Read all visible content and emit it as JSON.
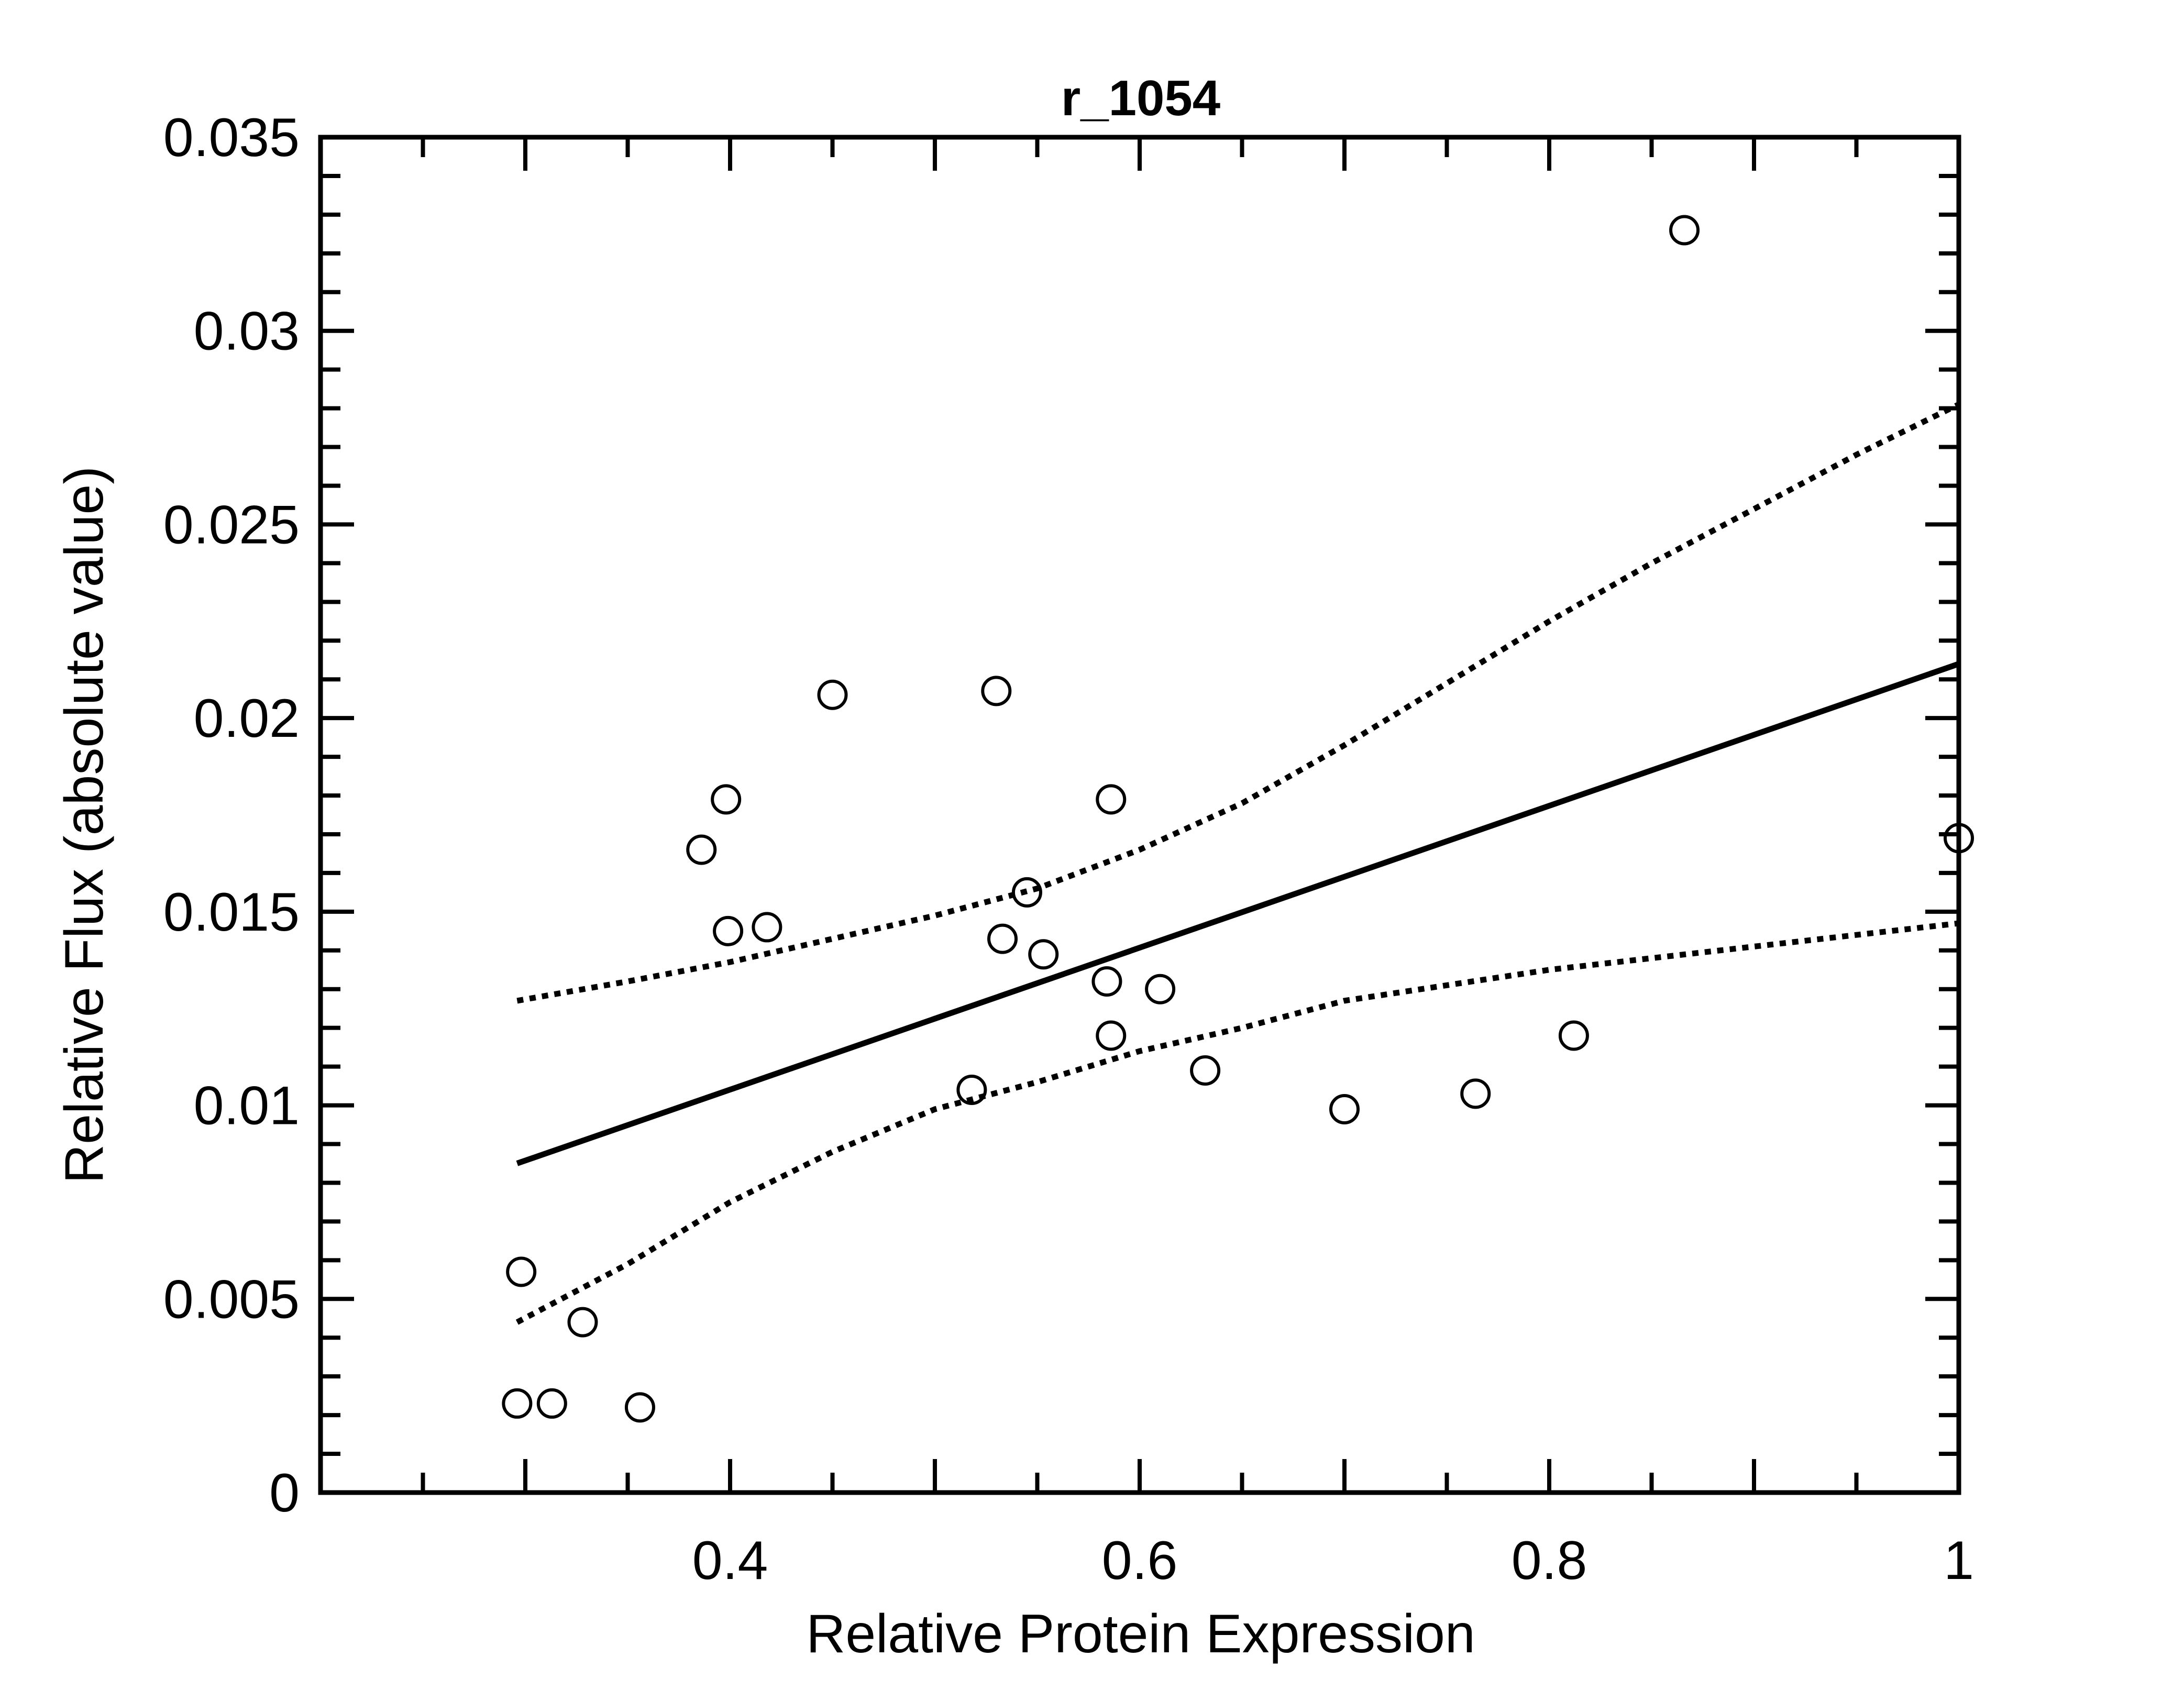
{
  "chart_data": {
    "type": "scatter",
    "title": "r_1054",
    "xlabel": "Relative Protein Expression",
    "ylabel": "Relative Flux (absolute value)",
    "xlim": [
      0.2,
      1.0
    ],
    "ylim": [
      0,
      0.035
    ],
    "x_ticks": [
      0.4,
      0.6,
      0.8,
      1.0
    ],
    "x_tick_labels": [
      "0.4",
      "0.6",
      "0.8",
      "1"
    ],
    "y_ticks": [
      0,
      0.005,
      0.01,
      0.015,
      0.02,
      0.025,
      0.03,
      0.035
    ],
    "y_tick_labels": [
      "0",
      "0.005",
      "0.01",
      "0.015",
      "0.02",
      "0.025",
      "0.03",
      "0.035"
    ],
    "grid": false,
    "marker": "open-circle",
    "points": [
      {
        "x": 0.296,
        "y": 0.0023
      },
      {
        "x": 0.298,
        "y": 0.0057
      },
      {
        "x": 0.313,
        "y": 0.0023
      },
      {
        "x": 0.328,
        "y": 0.0044
      },
      {
        "x": 0.356,
        "y": 0.0022
      },
      {
        "x": 0.386,
        "y": 0.0166
      },
      {
        "x": 0.398,
        "y": 0.0179
      },
      {
        "x": 0.399,
        "y": 0.0145
      },
      {
        "x": 0.418,
        "y": 0.0146
      },
      {
        "x": 0.45,
        "y": 0.0206
      },
      {
        "x": 0.518,
        "y": 0.0104
      },
      {
        "x": 0.53,
        "y": 0.0207
      },
      {
        "x": 0.533,
        "y": 0.0143
      },
      {
        "x": 0.545,
        "y": 0.0155
      },
      {
        "x": 0.553,
        "y": 0.0139
      },
      {
        "x": 0.584,
        "y": 0.0132
      },
      {
        "x": 0.586,
        "y": 0.0118
      },
      {
        "x": 0.586,
        "y": 0.0179
      },
      {
        "x": 0.61,
        "y": 0.013
      },
      {
        "x": 0.632,
        "y": 0.0109
      },
      {
        "x": 0.7,
        "y": 0.0099
      },
      {
        "x": 0.764,
        "y": 0.0103
      },
      {
        "x": 0.812,
        "y": 0.0118
      },
      {
        "x": 0.866,
        "y": 0.0326
      },
      {
        "x": 1.0,
        "y": 0.0169
      }
    ],
    "fit_line": {
      "x": [
        0.296,
        1.0
      ],
      "y": [
        0.0085,
        0.0214
      ]
    },
    "ci_upper": {
      "x": [
        0.296,
        0.35,
        0.4,
        0.45,
        0.5,
        0.55,
        0.6,
        0.65,
        0.7,
        0.75,
        0.8,
        0.85,
        0.9,
        0.95,
        1.0
      ],
      "y": [
        0.0127,
        0.0132,
        0.0137,
        0.0143,
        0.0149,
        0.0156,
        0.0166,
        0.0178,
        0.0193,
        0.0209,
        0.0225,
        0.024,
        0.0254,
        0.0268,
        0.0281
      ]
    },
    "ci_lower": {
      "x": [
        0.296,
        0.35,
        0.4,
        0.45,
        0.5,
        0.55,
        0.6,
        0.65,
        0.7,
        0.75,
        0.8,
        0.85,
        0.9,
        0.95,
        1.0
      ],
      "y": [
        0.0044,
        0.0059,
        0.0075,
        0.0088,
        0.0099,
        0.0106,
        0.0114,
        0.012,
        0.0127,
        0.0131,
        0.0135,
        0.0138,
        0.0141,
        0.0144,
        0.0147
      ]
    }
  }
}
